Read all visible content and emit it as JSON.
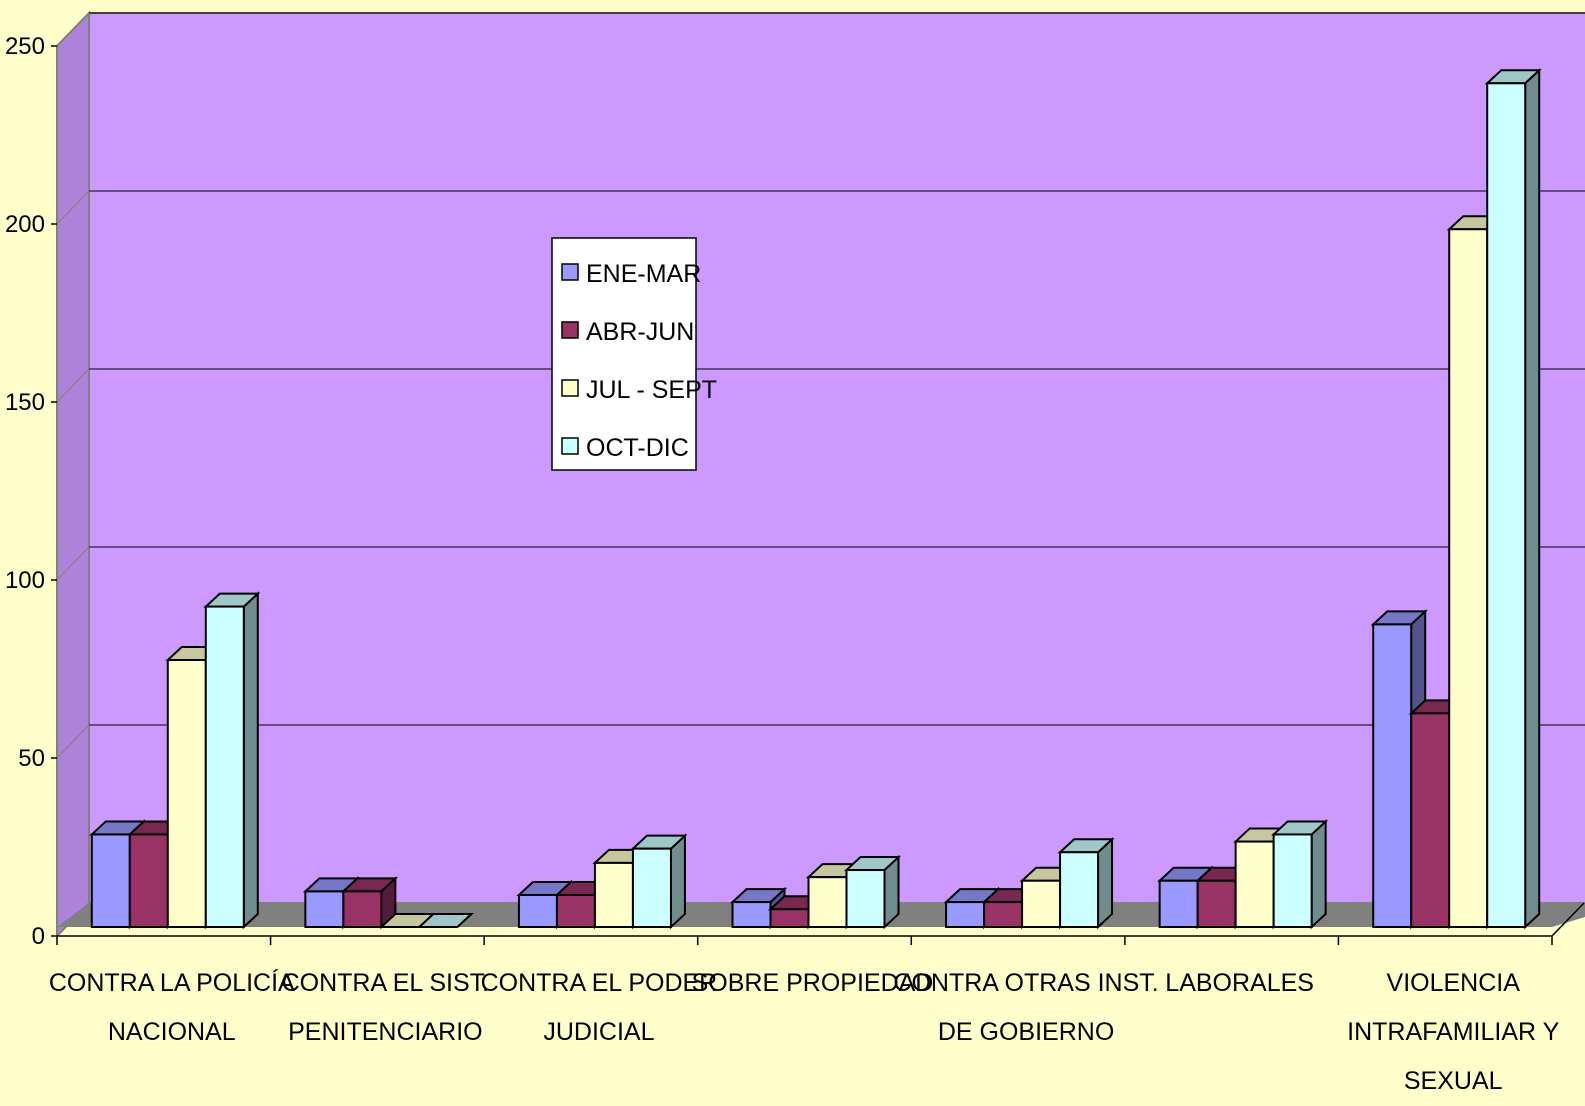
{
  "chart_data": {
    "type": "bar",
    "style": "3d-clustered-column",
    "categories": [
      [
        "CONTRA LA POLICÍA",
        "NACIONAL"
      ],
      [
        "CONTRA EL SIST.",
        "PENITENCIARIO"
      ],
      [
        "CONTRA EL PODER",
        "JUDICIAL"
      ],
      [
        "SOBRE PROPIEDAD"
      ],
      [
        "CONTRA OTRAS INST.",
        "DE GOBIERNO"
      ],
      [
        "LABORALES"
      ],
      [
        "VIOLENCIA",
        "INTRAFAMILIAR Y",
        "SEXUAL"
      ]
    ],
    "series": [
      {
        "name": "ENE-MAR",
        "color": "#9999FF",
        "values": [
          26,
          10,
          9,
          7,
          7,
          13,
          85
        ]
      },
      {
        "name": "ABR-JUN",
        "color": "#993366",
        "values": [
          26,
          10,
          9,
          5,
          7,
          13,
          60
        ]
      },
      {
        "name": "JUL - SEPT",
        "color": "#FFFFCC",
        "values": [
          75,
          0,
          18,
          14,
          13,
          24,
          196
        ]
      },
      {
        "name": "OCT-DIC",
        "color": "#CCFFFF",
        "values": [
          90,
          0,
          22,
          16,
          21,
          26,
          237
        ]
      }
    ],
    "ylim": [
      0,
      250
    ],
    "yticks": [
      0,
      50,
      100,
      150,
      200,
      250
    ],
    "grid": true,
    "legend_position": "inside-upper-left",
    "colors": {
      "page_background": "#FFFFCC",
      "wall": "#CC99FF",
      "floor": "#808080",
      "gridline": "#000000"
    },
    "title": "",
    "xlabel": "",
    "ylabel": ""
  }
}
